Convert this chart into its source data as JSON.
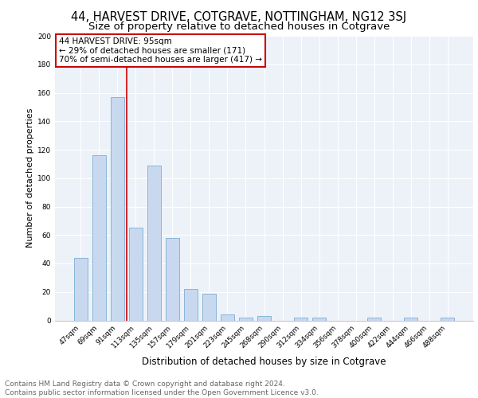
{
  "title1": "44, HARVEST DRIVE, COTGRAVE, NOTTINGHAM, NG12 3SJ",
  "title2": "Size of property relative to detached houses in Cotgrave",
  "xlabel": "Distribution of detached houses by size in Cotgrave",
  "ylabel": "Number of detached properties",
  "categories": [
    "47sqm",
    "69sqm",
    "91sqm",
    "113sqm",
    "135sqm",
    "157sqm",
    "179sqm",
    "201sqm",
    "223sqm",
    "245sqm",
    "268sqm",
    "290sqm",
    "312sqm",
    "334sqm",
    "356sqm",
    "378sqm",
    "400sqm",
    "422sqm",
    "444sqm",
    "466sqm",
    "488sqm"
  ],
  "values": [
    44,
    116,
    157,
    65,
    109,
    58,
    22,
    19,
    4,
    2,
    3,
    0,
    2,
    2,
    0,
    0,
    2,
    0,
    2,
    0,
    2
  ],
  "bar_color": "#c8d9ef",
  "bar_edge_color": "#7aadd4",
  "bar_width": 0.75,
  "red_line_x": 2.5,
  "annotation_text": "44 HARVEST DRIVE: 95sqm\n← 29% of detached houses are smaller (171)\n70% of semi-detached houses are larger (417) →",
  "annotation_box_facecolor": "#ffffff",
  "annotation_box_edgecolor": "#cc0000",
  "ylim_max": 200,
  "yticks": [
    0,
    20,
    40,
    60,
    80,
    100,
    120,
    140,
    160,
    180,
    200
  ],
  "plot_bg_color": "#edf2f9",
  "grid_color": "#ffffff",
  "footer_text": "Contains HM Land Registry data © Crown copyright and database right 2024.\nContains public sector information licensed under the Open Government Licence v3.0.",
  "title1_fontsize": 10.5,
  "title2_fontsize": 9.5,
  "xlabel_fontsize": 8.5,
  "ylabel_fontsize": 8,
  "tick_fontsize": 6.5,
  "annotation_fontsize": 7.5,
  "footer_fontsize": 6.5
}
